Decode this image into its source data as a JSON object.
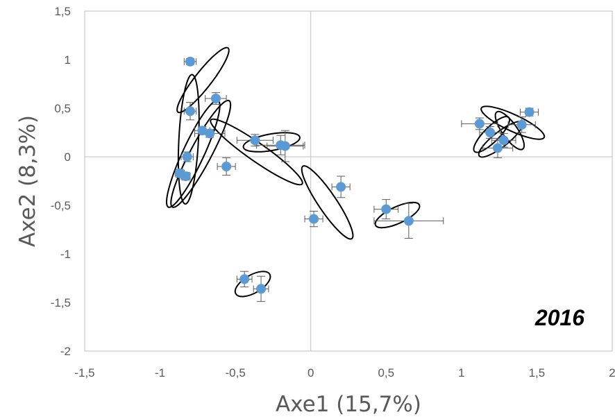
{
  "chart_data": {
    "type": "scatter",
    "title": "",
    "xlabel": "Axe1 (15,7%)",
    "ylabel": "Axe2 (8,3%)",
    "annotation": "2016",
    "xlim": [
      -1.5,
      2
    ],
    "ylim": [
      -2,
      1.5
    ],
    "xticks": [
      -1.5,
      -1,
      -0.5,
      0,
      0.5,
      1,
      1.5,
      2
    ],
    "xtick_labels": [
      "-1,5",
      "-1",
      "-0,5",
      "0",
      "0,5",
      "1",
      "1,5",
      "2"
    ],
    "yticks": [
      -2,
      -1.5,
      -1,
      -0.5,
      0,
      0.5,
      1,
      1.5
    ],
    "ytick_labels": [
      "-2",
      "-1,5",
      "-1",
      "-0,5",
      "0",
      "0,5",
      "1",
      "1,5"
    ],
    "grid": false,
    "zero_lines": true,
    "point_color": "#5B9BD5",
    "ellipse_color": "#000000",
    "errorbar_color": "#595959",
    "points": [
      {
        "x": -0.8,
        "y": 0.98,
        "xerr": 0.04,
        "yerr": 0.03
      },
      {
        "x": -0.63,
        "y": 0.6,
        "xerr": 0.07,
        "yerr": 0.06
      },
      {
        "x": -0.8,
        "y": 0.47,
        "xerr": 0.04,
        "yerr": 0.09
      },
      {
        "x": -0.82,
        "y": 0.0,
        "xerr": 0.04,
        "yerr": 0.05
      },
      {
        "x": -0.87,
        "y": -0.17,
        "xerr": 0.03,
        "yerr": 0.04
      },
      {
        "x": -0.83,
        "y": -0.2,
        "xerr": 0.03,
        "yerr": 0.04
      },
      {
        "x": -0.72,
        "y": 0.27,
        "xerr": 0.05,
        "yerr": 0.04
      },
      {
        "x": -0.67,
        "y": 0.24,
        "xerr": 0.1,
        "yerr": 0.04
      },
      {
        "x": -0.56,
        "y": -0.1,
        "xerr": 0.06,
        "yerr": 0.09
      },
      {
        "x": -0.37,
        "y": 0.17,
        "xerr": 0.12,
        "yerr": 0.06
      },
      {
        "x": -0.2,
        "y": 0.12,
        "xerr": 0.16,
        "yerr": 0.1
      },
      {
        "x": -0.17,
        "y": 0.11,
        "xerr": 0.12,
        "yerr": 0.16
      },
      {
        "x": 0.02,
        "y": -0.64,
        "xerr": 0.06,
        "yerr": 0.08
      },
      {
        "x": 0.2,
        "y": -0.31,
        "xerr": 0.06,
        "yerr": 0.11
      },
      {
        "x": 0.5,
        "y": -0.54,
        "xerr": 0.08,
        "yerr": 0.1
      },
      {
        "x": 0.65,
        "y": -0.66,
        "xerr": 0.23,
        "yerr": 0.18
      },
      {
        "x": -0.44,
        "y": -1.26,
        "xerr": 0.05,
        "yerr": 0.08
      },
      {
        "x": -0.33,
        "y": -1.36,
        "xerr": 0.05,
        "yerr": 0.13
      },
      {
        "x": 1.12,
        "y": 0.34,
        "xerr": 0.12,
        "yerr": 0.06
      },
      {
        "x": 1.19,
        "y": 0.25,
        "xerr": 0.07,
        "yerr": 0.06
      },
      {
        "x": 1.24,
        "y": 0.09,
        "xerr": 0.1,
        "yerr": 0.1
      },
      {
        "x": 1.28,
        "y": 0.17,
        "xerr": 0.08,
        "yerr": 0.07
      },
      {
        "x": 1.4,
        "y": 0.33,
        "xerr": 0.09,
        "yerr": 0.08
      },
      {
        "x": 1.45,
        "y": 0.46,
        "xerr": 0.06,
        "yerr": 0.04
      }
    ],
    "ellipses": [
      {
        "cx": -0.715,
        "cy": 0.79,
        "rx": 0.27,
        "ry": 0.055,
        "angle_deg": -52
      },
      {
        "cx": -0.81,
        "cy": 0.18,
        "rx": 0.43,
        "ry": 0.065,
        "angle_deg": -87
      },
      {
        "cx": -0.78,
        "cy": 0.03,
        "rx": 0.39,
        "ry": 0.07,
        "angle_deg": -65
      },
      {
        "cx": -0.73,
        "cy": 0.03,
        "rx": 0.4,
        "ry": 0.07,
        "angle_deg": -62
      },
      {
        "cx": -0.36,
        "cy": 0.05,
        "rx": 0.37,
        "ry": 0.06,
        "angle_deg": 35
      },
      {
        "cx": -0.26,
        "cy": 0.15,
        "rx": 0.19,
        "ry": 0.055,
        "angle_deg": -10
      },
      {
        "cx": 0.11,
        "cy": -0.47,
        "rx": 0.29,
        "ry": 0.06,
        "angle_deg": 56
      },
      {
        "cx": 0.575,
        "cy": -0.6,
        "rx": 0.16,
        "ry": 0.055,
        "angle_deg": -25
      },
      {
        "cx": -0.385,
        "cy": -1.31,
        "rx": 0.13,
        "ry": 0.06,
        "angle_deg": -30
      },
      {
        "cx": 1.2,
        "cy": 0.23,
        "rx": 0.16,
        "ry": 0.05,
        "angle_deg": -45
      },
      {
        "cx": 1.26,
        "cy": 0.18,
        "rx": 0.18,
        "ry": 0.05,
        "angle_deg": -38
      },
      {
        "cx": 1.32,
        "cy": 0.27,
        "rx": 0.15,
        "ry": 0.05,
        "angle_deg": 55
      },
      {
        "cx": 1.34,
        "cy": 0.35,
        "rx": 0.23,
        "ry": 0.055,
        "angle_deg": 25
      }
    ]
  }
}
